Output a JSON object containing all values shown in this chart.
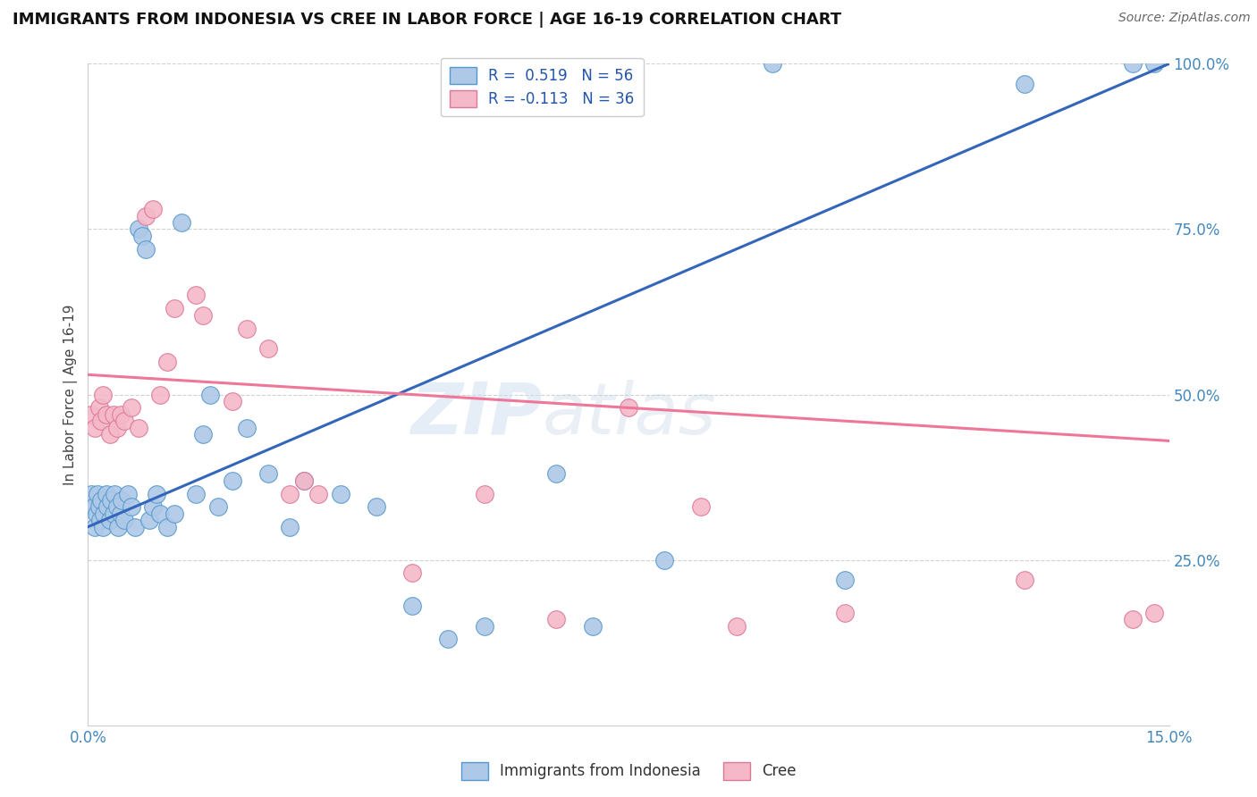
{
  "title": "IMMIGRANTS FROM INDONESIA VS CREE IN LABOR FORCE | AGE 16-19 CORRELATION CHART",
  "source": "Source: ZipAtlas.com",
  "ylabel_label": "In Labor Force | Age 16-19",
  "xlim": [
    0.0,
    15.0
  ],
  "ylim": [
    0.0,
    100.0
  ],
  "yticks": [
    25.0,
    50.0,
    75.0,
    100.0
  ],
  "xticks": [
    0.0,
    2.5,
    5.0,
    7.5,
    10.0,
    12.5,
    15.0
  ],
  "legend_blue_label": "Immigrants from Indonesia",
  "legend_pink_label": "Cree",
  "blue_R": 0.519,
  "blue_N": 56,
  "pink_R": -0.113,
  "pink_N": 36,
  "blue_color": "#aec8e8",
  "blue_edge_color": "#5599cc",
  "pink_color": "#f4b8c8",
  "pink_edge_color": "#dd7799",
  "blue_line_color": "#3366bb",
  "pink_line_color": "#ee7799",
  "watermark": "ZIPatlas",
  "blue_line_x0": 0.0,
  "blue_line_y0": 30.0,
  "blue_line_x1": 15.0,
  "blue_line_y1": 100.0,
  "pink_line_x0": 0.0,
  "pink_line_y0": 53.0,
  "pink_line_x1": 15.0,
  "pink_line_y1": 43.0,
  "blue_scatter_x": [
    0.05,
    0.08,
    0.1,
    0.12,
    0.13,
    0.15,
    0.17,
    0.18,
    0.2,
    0.22,
    0.25,
    0.27,
    0.3,
    0.32,
    0.35,
    0.37,
    0.4,
    0.42,
    0.45,
    0.47,
    0.5,
    0.55,
    0.6,
    0.65,
    0.7,
    0.75,
    0.8,
    0.85,
    0.9,
    0.95,
    1.0,
    1.1,
    1.2,
    1.3,
    1.5,
    1.6,
    1.7,
    1.8,
    2.0,
    2.2,
    2.5,
    2.8,
    3.0,
    3.5,
    4.0,
    4.5,
    5.0,
    5.5,
    6.5,
    7.0,
    8.0,
    9.5,
    10.5,
    13.0,
    14.5,
    14.8
  ],
  "blue_scatter_y": [
    35,
    33,
    30,
    32,
    35,
    33,
    31,
    34,
    30,
    32,
    35,
    33,
    31,
    34,
    32,
    35,
    33,
    30,
    32,
    34,
    31,
    35,
    33,
    30,
    75,
    74,
    72,
    31,
    33,
    35,
    32,
    30,
    32,
    76,
    35,
    44,
    50,
    33,
    37,
    45,
    38,
    30,
    37,
    35,
    33,
    18,
    13,
    15,
    38,
    15,
    25,
    100,
    22,
    97,
    100,
    100
  ],
  "pink_scatter_x": [
    0.05,
    0.1,
    0.15,
    0.18,
    0.2,
    0.25,
    0.3,
    0.35,
    0.4,
    0.45,
    0.5,
    0.6,
    0.7,
    0.8,
    0.9,
    1.0,
    1.1,
    1.2,
    1.5,
    1.6,
    2.0,
    2.2,
    2.5,
    2.8,
    3.0,
    3.2,
    4.5,
    5.5,
    6.5,
    7.5,
    8.5,
    9.0,
    10.5,
    13.0,
    14.5,
    14.8
  ],
  "pink_scatter_y": [
    47,
    45,
    48,
    46,
    50,
    47,
    44,
    47,
    45,
    47,
    46,
    48,
    45,
    77,
    78,
    50,
    55,
    63,
    65,
    62,
    49,
    60,
    57,
    35,
    37,
    35,
    23,
    35,
    16,
    48,
    33,
    15,
    17,
    22,
    16,
    17
  ],
  "background_color": "#ffffff",
  "grid_color": "#cccccc"
}
